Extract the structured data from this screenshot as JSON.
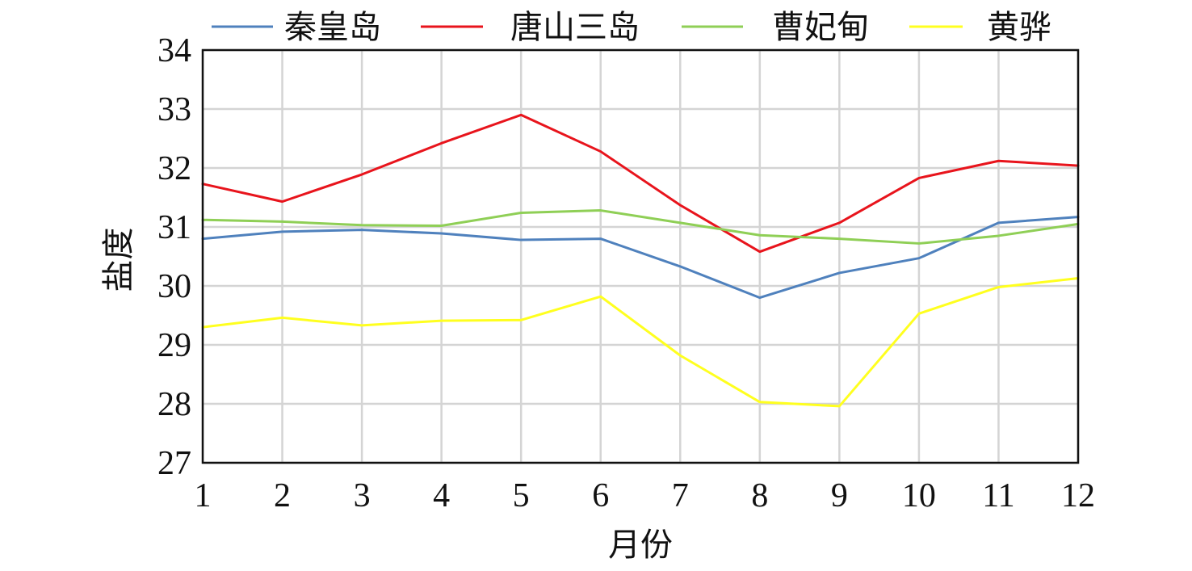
{
  "chart_data": {
    "type": "line",
    "x": [
      1,
      2,
      3,
      4,
      5,
      6,
      7,
      8,
      9,
      10,
      11,
      12
    ],
    "xlabel": "月份",
    "ylabel": "盐度",
    "xlim": [
      1,
      12
    ],
    "ylim": [
      27,
      34
    ],
    "yticks": [
      27,
      28,
      29,
      30,
      31,
      32,
      33,
      34
    ],
    "grid": true,
    "legend_position": "top",
    "series": [
      {
        "name": "秦皇岛",
        "color": "#4f81bd",
        "values": [
          30.8,
          30.92,
          30.95,
          30.89,
          30.78,
          30.8,
          30.33,
          29.8,
          30.22,
          30.47,
          31.07,
          31.17
        ]
      },
      {
        "name": "唐山三岛",
        "color": "#e8141c",
        "values": [
          31.73,
          31.43,
          31.89,
          32.42,
          32.9,
          32.28,
          31.37,
          30.58,
          31.07,
          31.83,
          32.12,
          32.04
        ]
      },
      {
        "name": "曹妃甸",
        "color": "#8fcf56",
        "values": [
          31.12,
          31.09,
          31.03,
          31.02,
          31.24,
          31.28,
          31.07,
          30.86,
          30.8,
          30.72,
          30.85,
          31.05
        ]
      },
      {
        "name": "黄骅",
        "color": "#ffff1f",
        "values": [
          29.3,
          29.46,
          29.33,
          29.41,
          29.42,
          29.82,
          28.82,
          28.03,
          27.96,
          29.53,
          29.98,
          30.13
        ]
      }
    ]
  }
}
